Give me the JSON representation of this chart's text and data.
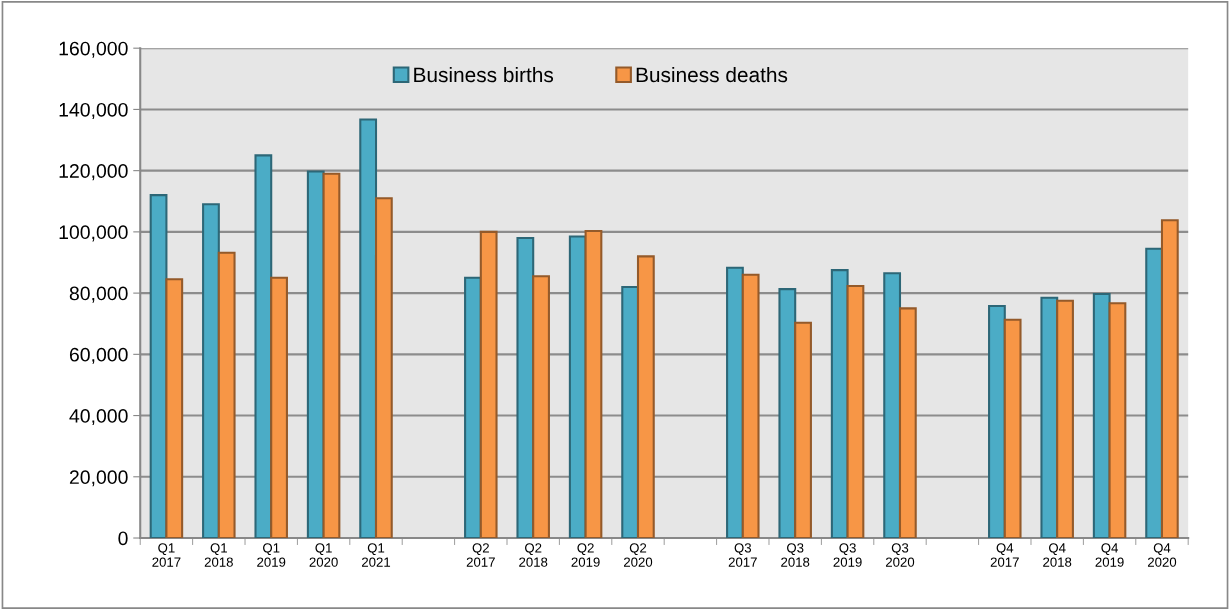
{
  "chart_data": {
    "type": "bar",
    "categories": [
      "Q1\n2017",
      "Q1\n2018",
      "Q1\n2019",
      "Q1\n2020",
      "Q1\n2021",
      null,
      "Q2\n2017",
      "Q2\n2018",
      "Q2\n2019",
      "Q2\n2020",
      null,
      "Q3\n2017",
      "Q3\n2018",
      "Q3\n2019",
      "Q3\n2020",
      null,
      "Q4\n2017",
      "Q4\n2018",
      "Q4\n2019",
      "Q4\n2020"
    ],
    "series": [
      {
        "name": "Business births",
        "color": "#4bacc6",
        "values": [
          112000,
          109000,
          125000,
          119700,
          136700,
          null,
          85000,
          98000,
          98500,
          82000,
          null,
          88300,
          81300,
          87500,
          86500,
          null,
          75800,
          78500,
          79700,
          94500
        ]
      },
      {
        "name": "Business deaths",
        "color": "#f79646",
        "values": [
          84500,
          93200,
          85000,
          119000,
          111000,
          null,
          100000,
          85500,
          100300,
          92000,
          null,
          86000,
          70300,
          82300,
          75000,
          null,
          71300,
          77500,
          76700,
          103800
        ]
      }
    ],
    "ylim": [
      0,
      160000
    ],
    "yticks": [
      {
        "value": 0,
        "label": "0"
      },
      {
        "value": 20000,
        "label": "20,000"
      },
      {
        "value": 40000,
        "label": "40,000"
      },
      {
        "value": 60000,
        "label": "60,000"
      },
      {
        "value": 80000,
        "label": "80,000"
      },
      {
        "value": 100000,
        "label": "100,000"
      },
      {
        "value": 120000,
        "label": "120,000"
      },
      {
        "value": 140000,
        "label": "140,000"
      },
      {
        "value": 160000,
        "label": "160,000"
      }
    ],
    "grid": "y",
    "legend": "top"
  }
}
